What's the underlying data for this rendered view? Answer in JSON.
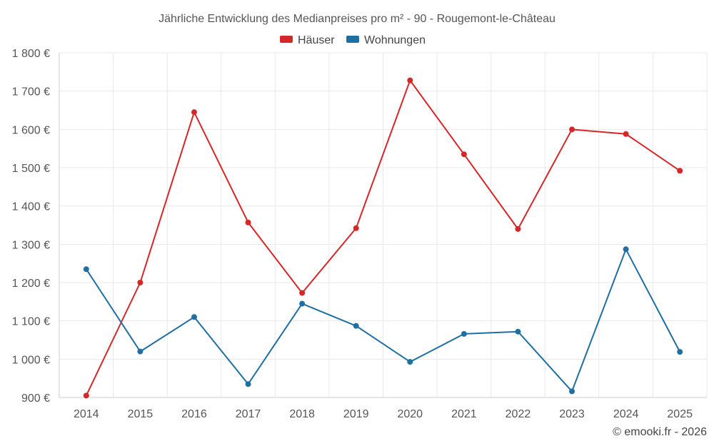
{
  "chart_data": {
    "type": "line",
    "title": "Jährliche Entwicklung des Medianpreises pro m² - 90 - Rougemont-le-Château",
    "categories": [
      "2014",
      "2015",
      "2016",
      "2017",
      "2018",
      "2019",
      "2020",
      "2021",
      "2022",
      "2023",
      "2024",
      "2025"
    ],
    "series": [
      {
        "name": "Häuser",
        "color": "#d62728",
        "values": [
          905,
          1200,
          1645,
          1357,
          1173,
          1342,
          1728,
          1535,
          1340,
          1600,
          1588,
          1492
        ]
      },
      {
        "name": "Wohnungen",
        "color": "#1f6fa3",
        "values": [
          1235,
          1020,
          1110,
          935,
          1145,
          1087,
          993,
          1066,
          1072,
          916,
          1287,
          1019
        ]
      }
    ],
    "ylim": [
      900,
      1800
    ],
    "yticks": [
      900,
      1000,
      1100,
      1200,
      1300,
      1400,
      1500,
      1600,
      1700,
      1800
    ],
    "ytick_labels": [
      "900 €",
      "1 000 €",
      "1 100 €",
      "1 200 €",
      "1 300 €",
      "1 400 €",
      "1 500 €",
      "1 600 €",
      "1 700 €",
      "1 800 €"
    ],
    "xlabel": "",
    "ylabel": "",
    "grid": true,
    "legend_position": "top-center"
  },
  "credit": "© emooki.fr - 2026"
}
